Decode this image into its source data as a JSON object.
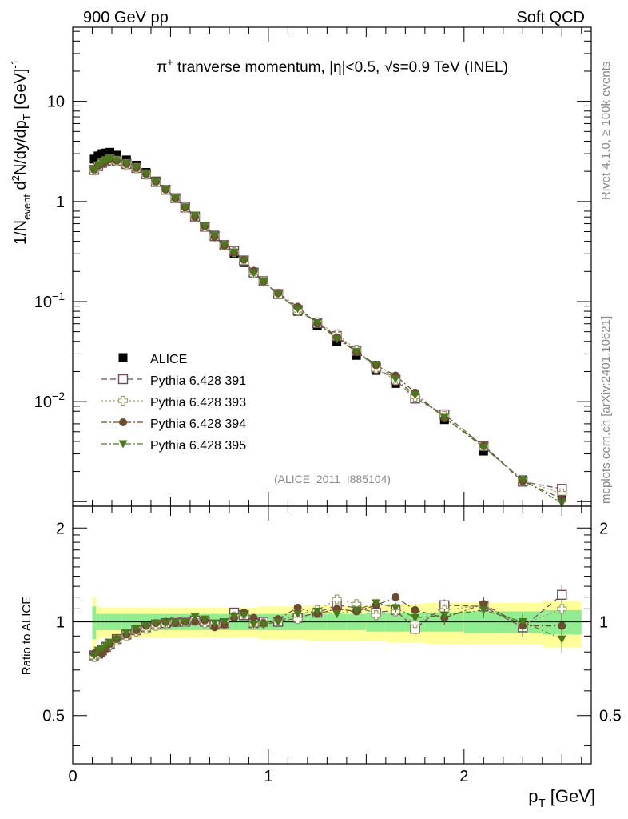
{
  "header": {
    "energy": "900 GeV pp",
    "category": "Soft QCD"
  },
  "side": {
    "rivet": "Rivet 4.1.0, ≥ 100k events",
    "mcplots": "mcplots.cern.ch [arXiv:2401.10621]"
  },
  "colors": {
    "alice": "#000000",
    "p391": "#6e4a5e",
    "p393": "#a0a06a",
    "p394": "#6e4a2e",
    "p395": "#4a7a1a",
    "band_inner": "#90ee90",
    "band_outer": "#ffff99"
  },
  "chart_data": {
    "type": "scatter",
    "title": "π⁺ tranverse momentum, |η|<0.5, √s=0.9 TeV (INEL)",
    "title_parts": {
      "pi": "π",
      "plus": "+",
      "text1": " tranverse momentum, ",
      "eta": "|η|<0.5, ",
      "sqrt": "√s",
      "text2": "=0.9 TeV (INEL)"
    },
    "analysis": "(ALICE_2011_I885104)",
    "xlabel": "p_T [GeV]",
    "ylabel": "1/N_event d²N/dy/dp_T [GeV]⁻¹",
    "ratio_ylabel": "Ratio to ALICE",
    "xlim": [
      0,
      2.65
    ],
    "ylim": [
      0.0009,
      55
    ],
    "ratio_ylim": [
      0.35,
      2.35
    ],
    "x_ticks": [
      0,
      1,
      2
    ],
    "y_ticks": [
      {
        "v": 0.01,
        "base": "10",
        "exp": "−2"
      },
      {
        "v": 0.1,
        "base": "10",
        "exp": "−1"
      },
      {
        "v": 1,
        "base": "1",
        "exp": ""
      },
      {
        "v": 10,
        "base": "10",
        "exp": ""
      }
    ],
    "ratio_ticks": [
      0.5,
      1,
      2
    ],
    "x": [
      0.11,
      0.13,
      0.15,
      0.17,
      0.19,
      0.225,
      0.275,
      0.325,
      0.375,
      0.425,
      0.475,
      0.525,
      0.575,
      0.625,
      0.675,
      0.725,
      0.775,
      0.825,
      0.875,
      0.925,
      0.975,
      1.05,
      1.15,
      1.25,
      1.35,
      1.45,
      1.55,
      1.65,
      1.75,
      1.9,
      2.1,
      2.3,
      2.5
    ],
    "x_err": [
      0.01,
      0.01,
      0.01,
      0.01,
      0.01,
      0.025,
      0.025,
      0.025,
      0.025,
      0.025,
      0.025,
      0.025,
      0.025,
      0.025,
      0.025,
      0.025,
      0.025,
      0.025,
      0.025,
      0.025,
      0.025,
      0.05,
      0.05,
      0.05,
      0.05,
      0.05,
      0.05,
      0.05,
      0.05,
      0.1,
      0.1,
      0.1,
      0.1
    ],
    "alice": [
      2.65,
      2.85,
      3.0,
      3.05,
      3.1,
      2.9,
      2.6,
      2.3,
      1.95,
      1.6,
      1.32,
      1.08,
      0.87,
      0.7,
      0.56,
      0.46,
      0.37,
      0.3,
      0.245,
      0.197,
      0.16,
      0.119,
      0.08,
      0.057,
      0.04,
      0.029,
      0.0205,
      0.0152,
      0.0113,
      0.0066,
      0.0032,
      0.00165,
      0.0011
    ],
    "band_inner": [
      0.12,
      0.06,
      0.06,
      0.06,
      0.06,
      0.06,
      0.06,
      0.06,
      0.06,
      0.06,
      0.06,
      0.06,
      0.06,
      0.06,
      0.06,
      0.06,
      0.06,
      0.06,
      0.06,
      0.06,
      0.06,
      0.06,
      0.06,
      0.06,
      0.06,
      0.06,
      0.07,
      0.07,
      0.07,
      0.07,
      0.08,
      0.08,
      0.09
    ],
    "band_outer": [
      0.2,
      0.12,
      0.11,
      0.11,
      0.11,
      0.11,
      0.11,
      0.11,
      0.11,
      0.11,
      0.11,
      0.11,
      0.11,
      0.11,
      0.11,
      0.11,
      0.11,
      0.11,
      0.11,
      0.11,
      0.12,
      0.12,
      0.12,
      0.13,
      0.13,
      0.13,
      0.13,
      0.14,
      0.14,
      0.15,
      0.15,
      0.15,
      0.17
    ],
    "legend": {
      "position": "left",
      "entries": [
        "ALICE",
        "Pythia 6.428 391",
        "Pythia 6.428 393",
        "Pythia 6.428 394",
        "Pythia 6.428 395"
      ]
    },
    "series": [
      {
        "name": "Pythia 6.428 391",
        "marker": "open-square",
        "line": "dashed",
        "ratio": [
          0.78,
          0.79,
          0.81,
          0.83,
          0.85,
          0.88,
          0.91,
          0.94,
          0.96,
          0.98,
          0.99,
          1.0,
          1.0,
          1.01,
          1.0,
          0.98,
          0.99,
          1.07,
          1.05,
          0.99,
          1.0,
          1.0,
          1.03,
          1.07,
          1.13,
          1.11,
          1.07,
          1.09,
          0.95,
          1.13,
          1.12,
          0.96,
          1.22
        ],
        "err": [
          0.01,
          0.01,
          0.01,
          0.01,
          0.01,
          0.01,
          0.01,
          0.01,
          0.01,
          0.01,
          0.01,
          0.01,
          0.01,
          0.01,
          0.01,
          0.01,
          0.02,
          0.02,
          0.02,
          0.02,
          0.02,
          0.02,
          0.02,
          0.03,
          0.03,
          0.03,
          0.04,
          0.04,
          0.05,
          0.05,
          0.06,
          0.07,
          0.09
        ]
      },
      {
        "name": "Pythia 6.428 393",
        "marker": "open-cross",
        "line": "dotted",
        "ratio": [
          0.77,
          0.79,
          0.8,
          0.82,
          0.84,
          0.87,
          0.9,
          0.93,
          0.95,
          0.97,
          0.99,
          1.0,
          1.0,
          1.01,
          0.99,
          0.97,
          0.98,
          1.04,
          1.06,
          0.98,
          0.99,
          1.01,
          1.02,
          1.09,
          1.18,
          1.14,
          1.05,
          1.08,
          0.99,
          1.09,
          1.13,
          0.98,
          1.1
        ],
        "err": [
          0.01,
          0.01,
          0.01,
          0.01,
          0.01,
          0.01,
          0.01,
          0.01,
          0.01,
          0.01,
          0.01,
          0.01,
          0.01,
          0.01,
          0.01,
          0.01,
          0.02,
          0.02,
          0.02,
          0.02,
          0.02,
          0.02,
          0.02,
          0.03,
          0.03,
          0.03,
          0.04,
          0.04,
          0.05,
          0.05,
          0.06,
          0.07,
          0.09
        ]
      },
      {
        "name": "Pythia 6.428 394",
        "marker": "filled-circle",
        "line": "dashdot",
        "ratio": [
          0.79,
          0.8,
          0.79,
          0.82,
          0.85,
          0.88,
          0.91,
          0.94,
          0.97,
          0.99,
          1.0,
          0.99,
          1.0,
          1.0,
          1.01,
          0.96,
          0.98,
          1.03,
          1.07,
          1.03,
          0.99,
          1.02,
          1.11,
          1.06,
          1.1,
          1.08,
          1.13,
          1.2,
          1.09,
          1.03,
          1.14,
          0.97,
          0.97
        ],
        "err": [
          0.01,
          0.01,
          0.01,
          0.01,
          0.01,
          0.01,
          0.01,
          0.01,
          0.01,
          0.01,
          0.01,
          0.01,
          0.01,
          0.01,
          0.01,
          0.01,
          0.02,
          0.02,
          0.02,
          0.02,
          0.02,
          0.02,
          0.02,
          0.03,
          0.03,
          0.03,
          0.04,
          0.04,
          0.05,
          0.05,
          0.06,
          0.07,
          0.09
        ]
      },
      {
        "name": "Pythia 6.428 395",
        "marker": "filled-triangle-down",
        "line": "dashdot",
        "ratio": [
          0.78,
          0.81,
          0.82,
          0.84,
          0.86,
          0.88,
          0.92,
          0.95,
          0.97,
          0.99,
          0.99,
          1.0,
          1.0,
          1.04,
          1.02,
          0.99,
          1.0,
          1.04,
          1.05,
          0.98,
          0.98,
          1.0,
          1.06,
          1.08,
          1.06,
          1.09,
          1.15,
          1.11,
          1.03,
          1.05,
          1.09,
          1.0,
          0.88
        ],
        "err": [
          0.01,
          0.01,
          0.01,
          0.01,
          0.01,
          0.01,
          0.01,
          0.01,
          0.01,
          0.01,
          0.01,
          0.01,
          0.01,
          0.01,
          0.01,
          0.01,
          0.02,
          0.02,
          0.02,
          0.02,
          0.02,
          0.02,
          0.02,
          0.03,
          0.03,
          0.03,
          0.04,
          0.04,
          0.05,
          0.05,
          0.06,
          0.07,
          0.09
        ]
      }
    ]
  }
}
